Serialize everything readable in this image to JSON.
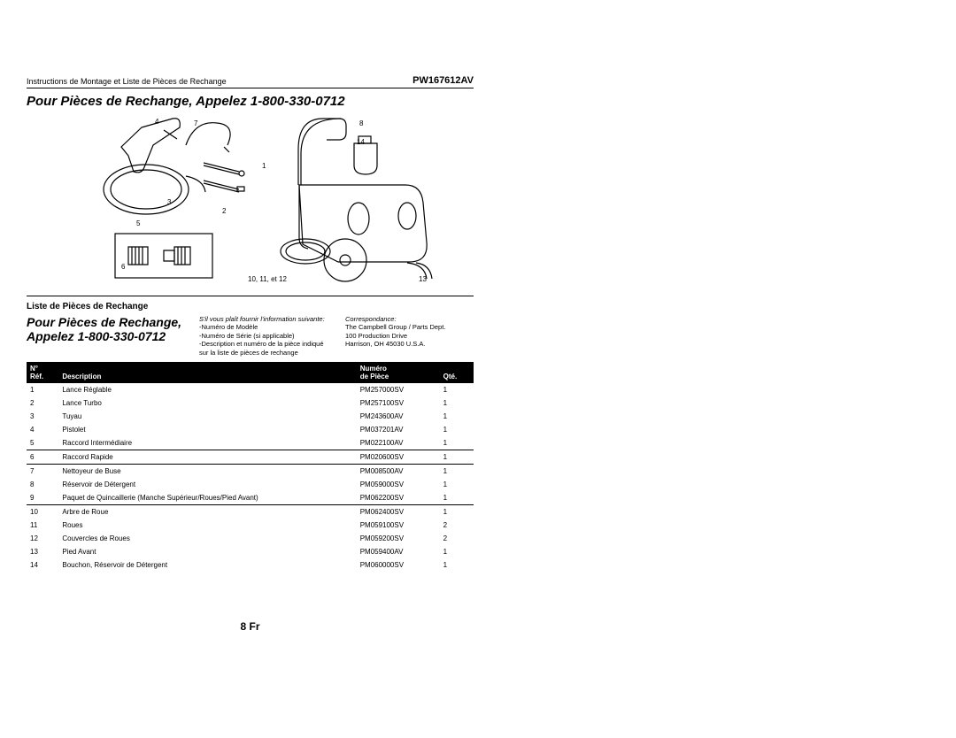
{
  "header": {
    "left": "Instructions de Montage et Liste de Pièces de Rechange",
    "right": "PW167612AV"
  },
  "title": "Pour Pièces de Rechange, Appelez 1-800-330-0712",
  "diagram": {
    "callouts": {
      "c4": "4",
      "c7": "7",
      "c8": "8",
      "c14": "14",
      "c1": "1",
      "c3": "3",
      "c2": "2",
      "c5": "5",
      "c6": "6",
      "c13": "13",
      "group": "10, 11, et 12"
    }
  },
  "subheading": "Liste de Pièces de Rechange",
  "mid": {
    "left_line1": "Pour Pièces de Rechange,",
    "left_line2": "Appelez 1-800-330-0712",
    "center_intro": "S'il vous plaît fournir l'information suivante:",
    "center_lines": [
      "-Numéro de Modèle",
      "-Numéro de Série (si applicable)",
      "-Description et numéro de la pièce indiqué",
      " sur la liste de pièces de rechange"
    ],
    "right_intro": "Correspondance:",
    "right_lines": [
      "The Campbell Group / Parts Dept.",
      "100 Production Drive",
      "Harrison, OH   45030  U.S.A."
    ]
  },
  "table": {
    "headers": {
      "ref_top": "N°",
      "ref": "Réf.",
      "desc": "Description",
      "num_top": "Numéro",
      "num": "de Pièce",
      "qty": "Qté."
    },
    "rows": [
      {
        "ref": "1",
        "desc": "Lance Réglable",
        "num": "PM257000SV",
        "qty": "1"
      },
      {
        "ref": "2",
        "desc": "Lance Turbo",
        "num": "PM257100SV",
        "qty": "1"
      },
      {
        "ref": "3",
        "desc": "Tuyau",
        "num": "PM243600AV",
        "qty": "1"
      },
      {
        "ref": "4",
        "desc": "Pistolet",
        "num": "PM037201AV",
        "qty": "1"
      },
      {
        "ref": "5",
        "desc": "Raccord Intermédiaire",
        "num": "PM022100AV",
        "qty": "1"
      },
      {
        "ref": "6",
        "desc": "Raccord Rapide",
        "num": "PM020600SV",
        "qty": "1"
      },
      {
        "ref": "7",
        "desc": "Nettoyeur de Buse",
        "num": "PM008500AV",
        "qty": "1"
      },
      {
        "ref": "8",
        "desc": "Réservoir de Détergent",
        "num": "PM059000SV",
        "qty": "1"
      },
      {
        "ref": "9",
        "desc": "Paquet de Quincaillerie (Manche Supérieur/Roues/Pied Avant)",
        "num": "PM062200SV",
        "qty": "1"
      },
      {
        "ref": "10",
        "desc": "Arbre de Roue",
        "num": "PM062400SV",
        "qty": "1"
      },
      {
        "ref": "11",
        "desc": "Roues",
        "num": "PM059100SV",
        "qty": "2"
      },
      {
        "ref": "12",
        "desc": "Couvercles de Roues",
        "num": "PM059200SV",
        "qty": "2"
      },
      {
        "ref": "13",
        "desc": "Pied Avant",
        "num": "PM059400AV",
        "qty": "1"
      },
      {
        "ref": "14",
        "desc": "Bouchon, Réservoir de Détergent",
        "num": "PM060000SV",
        "qty": "1"
      }
    ]
  },
  "footer": "8 Fr"
}
